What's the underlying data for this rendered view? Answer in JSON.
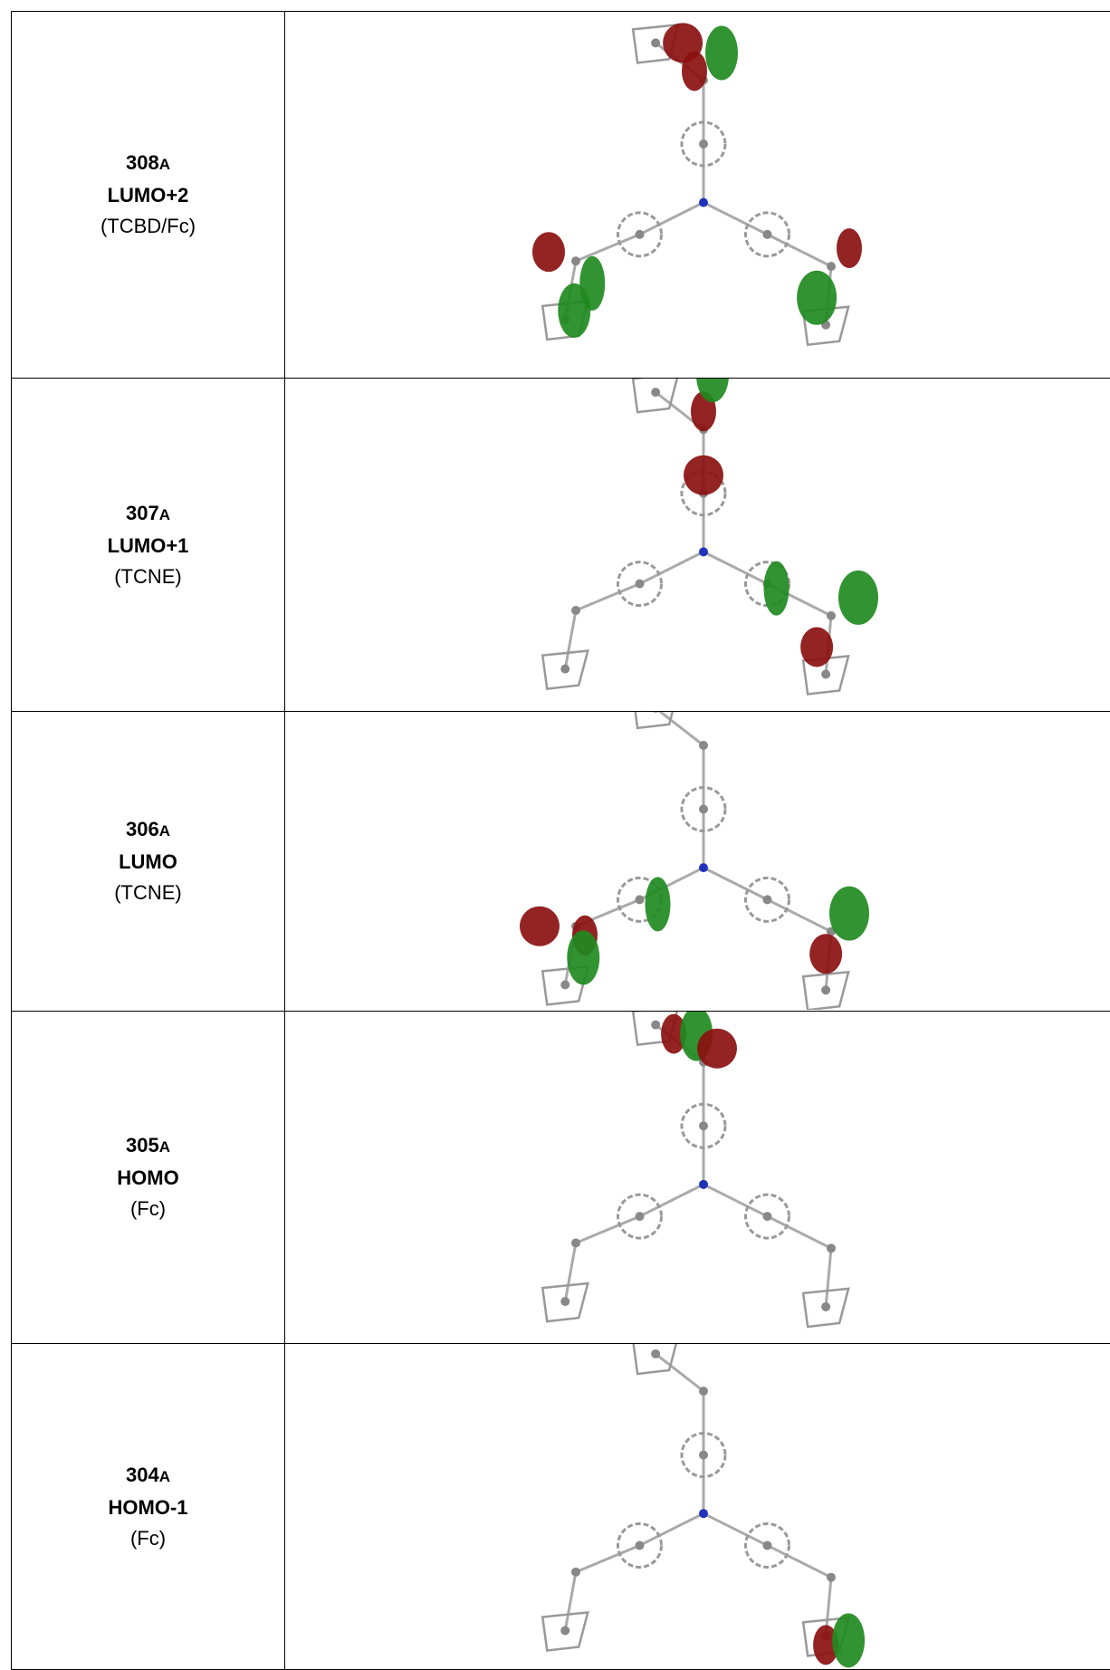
{
  "table": {
    "rows": [
      {
        "id": "308",
        "sub": "A",
        "orbital": "LUMO+2",
        "fragment": "(TCBD/Fc)"
      },
      {
        "id": "307",
        "sub": "A",
        "orbital": "LUMO+1",
        "fragment": "(TCNE)"
      },
      {
        "id": "306",
        "sub": "A",
        "orbital": "LUMO",
        "fragment": "(TCNE)"
      },
      {
        "id": "305",
        "sub": "A",
        "orbital": "HOMO",
        "fragment": "(Fc)"
      },
      {
        "id": "304",
        "sub": "A",
        "orbital": "HOMO-1",
        "fragment": "(Fc)"
      }
    ]
  }
}
